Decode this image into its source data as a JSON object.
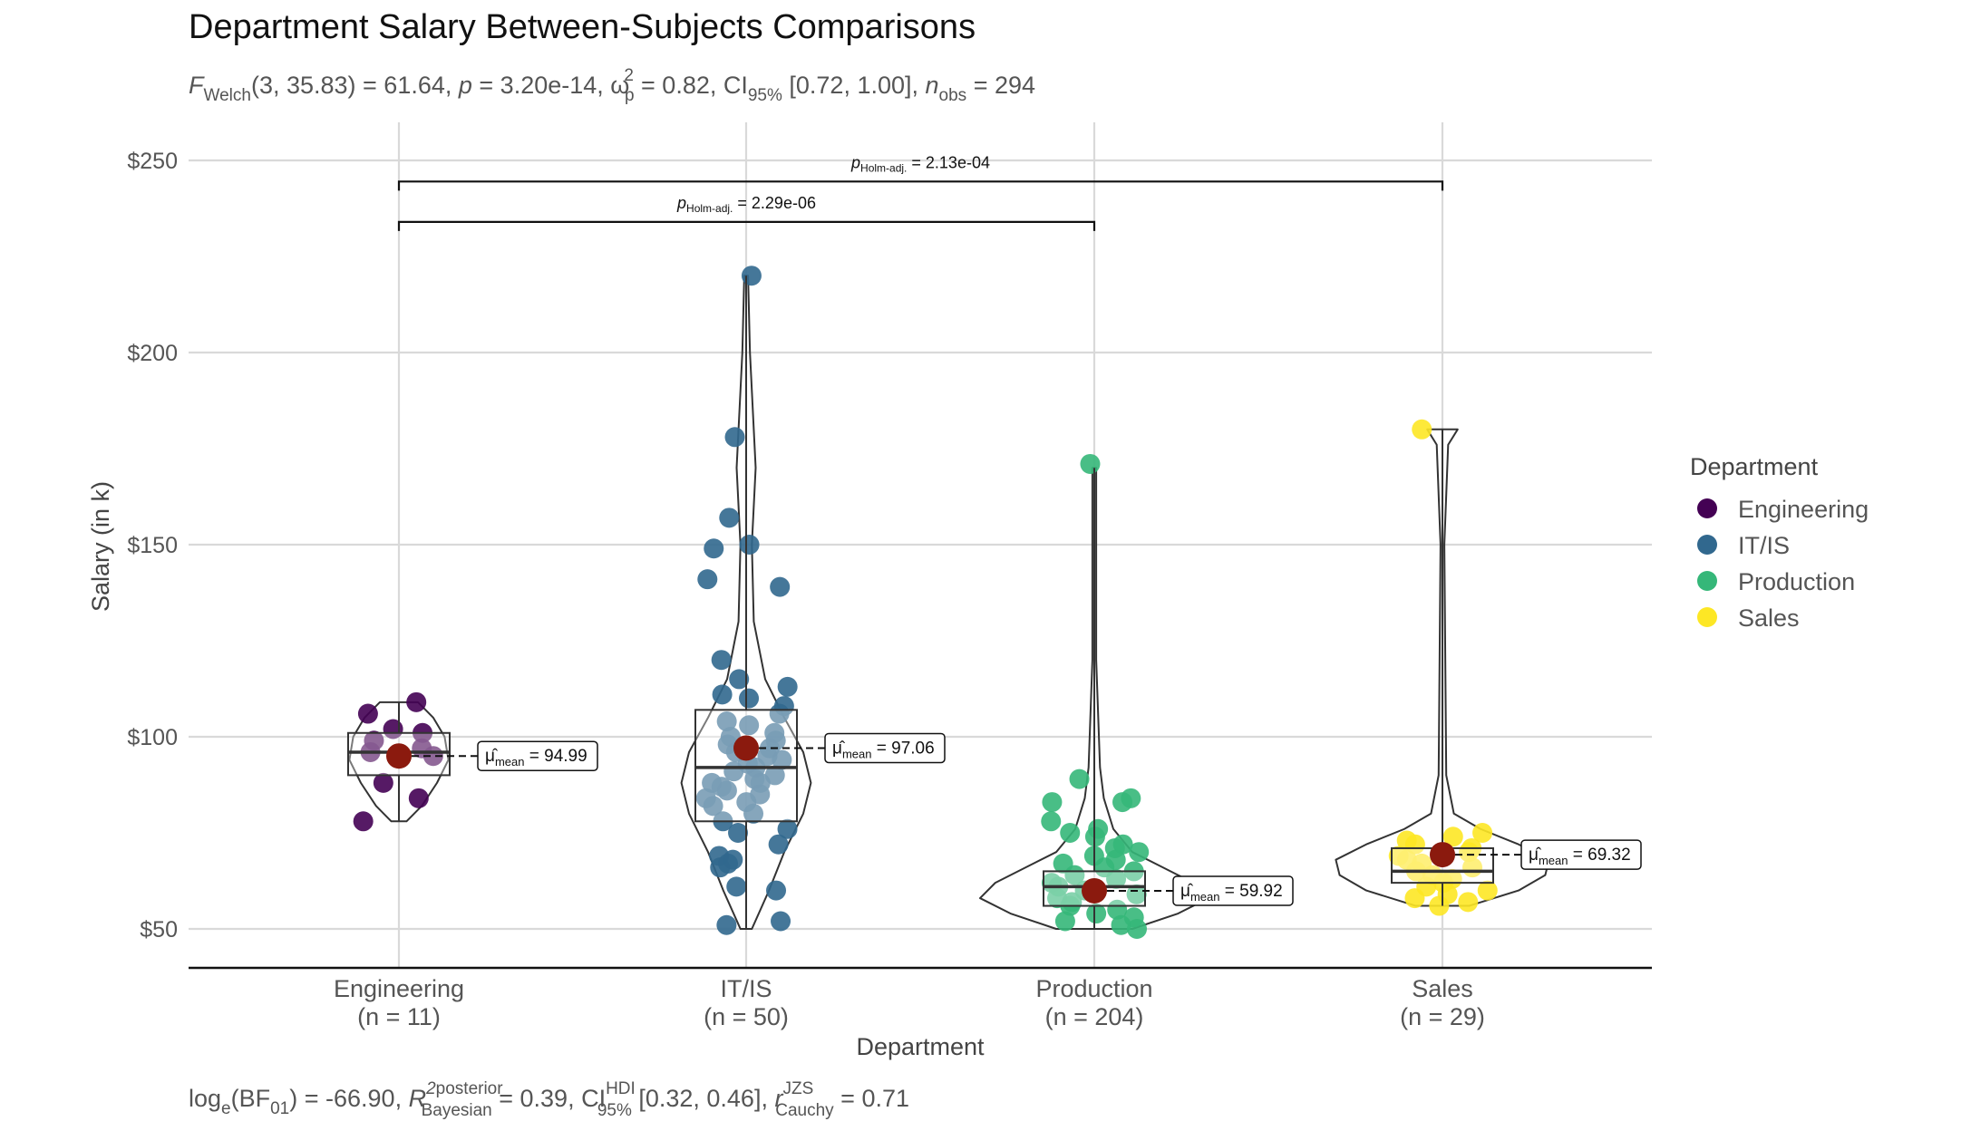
{
  "chart_data": {
    "type": "violin-box-scatter",
    "title": "Department Salary Between-Subjects Comparisons",
    "subtitle": {
      "stat": "F",
      "stat_sub": "Welch",
      "df": "(3, 35.83)",
      "statistic": " = 61.64, ",
      "p_label": "p",
      "p_value": " = 3.20e-14, ",
      "effect": "ω",
      "effect_sup": "2",
      "effect_sub": "p",
      "effect_value": " = 0.82, CI",
      "ci_sub": "95%",
      "ci_value": " [0.72, 1.00], ",
      "n_label": "n",
      "n_sub": "obs",
      "n_value": " = 294"
    },
    "caption": {
      "log": "log",
      "log_sub": "e",
      "bf": "(BF",
      "bf_sub": "01",
      "bf_value": ") = -66.90, ",
      "r2": "R",
      "r2_sup": "2",
      "r2_sup2": "posterior",
      "r2_sub": "Bayesian",
      "r2_value": " = 0.39, CI",
      "hdi_sup": "HDI",
      "hdi_sub": "95%",
      "hdi_value": " [0.32, 0.46], ",
      "r_label": "r",
      "r_sup": "JZS",
      "r_sub": "Cauchy",
      "r_value": " = 0.71"
    },
    "xlabel": "Department",
    "ylabel": "Salary (in k)",
    "ylim": [
      40,
      250
    ],
    "yticks": [
      50,
      100,
      150,
      200,
      250
    ],
    "ytick_labels": [
      "$50",
      "$100",
      "$150",
      "$200",
      "$250"
    ],
    "legend": {
      "title": "Department",
      "position": "right",
      "entries": [
        "Engineering",
        "IT/IS",
        "Production",
        "Sales"
      ]
    },
    "groups": [
      {
        "name": "Engineering",
        "n_label": "(n = 11)",
        "color": "#440154",
        "mean": 94.99,
        "mean_label": " = 94.99",
        "box": {
          "q1": 90,
          "median": 96,
          "q3": 101,
          "whisker_low": 78,
          "whisker_high": 109
        },
        "violin_halfwidth": [
          [
            78,
            4
          ],
          [
            82,
            12
          ],
          [
            88,
            20
          ],
          [
            94,
            26
          ],
          [
            100,
            24
          ],
          [
            105,
            18
          ],
          [
            109,
            10
          ]
        ],
        "points": [
          109,
          106,
          102,
          101,
          99,
          97,
          96,
          95,
          88,
          84,
          78
        ]
      },
      {
        "name": "IT/IS",
        "n_label": "(n = 50)",
        "color": "#31688e",
        "mean": 97.06,
        "mean_label": " = 97.06",
        "box": {
          "q1": 78,
          "median": 92,
          "q3": 107,
          "whisker_low": 50,
          "whisker_high": 220
        },
        "violin_halfwidth": [
          [
            50,
            3
          ],
          [
            60,
            12
          ],
          [
            70,
            20
          ],
          [
            80,
            30
          ],
          [
            88,
            34
          ],
          [
            96,
            30
          ],
          [
            105,
            20
          ],
          [
            115,
            10
          ],
          [
            130,
            4
          ],
          [
            150,
            3
          ],
          [
            170,
            5
          ],
          [
            200,
            2
          ],
          [
            220,
            1
          ]
        ],
        "points": [
          220,
          178,
          157,
          150,
          149,
          141,
          139,
          120,
          115,
          113,
          111,
          110,
          108,
          106,
          104,
          103,
          101,
          100,
          99,
          98,
          97,
          96,
          95,
          94,
          93,
          92,
          91,
          90,
          89,
          88,
          88,
          87,
          86,
          85,
          84,
          83,
          82,
          80,
          78,
          76,
          75,
          72,
          69,
          68,
          67,
          66,
          61,
          60,
          52,
          51
        ]
      },
      {
        "name": "Production",
        "n_label": "(n = 204)",
        "color": "#35b779",
        "mean": 59.92,
        "mean_label": " = 59.92",
        "box": {
          "q1": 56,
          "median": 61,
          "q3": 65,
          "whisker_low": 50,
          "whisker_high": 170
        },
        "violin_halfwidth": [
          [
            50,
            20
          ],
          [
            54,
            44
          ],
          [
            58,
            60
          ],
          [
            62,
            52
          ],
          [
            66,
            36
          ],
          [
            70,
            20
          ],
          [
            76,
            10
          ],
          [
            84,
            5
          ],
          [
            92,
            3
          ],
          [
            120,
            1
          ],
          [
            170,
            1
          ]
        ],
        "points": [
          171,
          89,
          84,
          83,
          83,
          78,
          76,
          75,
          74,
          72,
          71,
          70,
          69,
          68,
          67,
          66,
          65,
          64,
          63,
          62,
          61,
          60,
          59,
          58,
          57,
          56,
          55,
          54,
          53,
          52,
          51,
          50
        ]
      },
      {
        "name": "Sales",
        "n_label": "(n = 29)",
        "color": "#fde725",
        "mean": 69.32,
        "mean_label": " = 69.32",
        "box": {
          "q1": 62,
          "median": 65,
          "q3": 71,
          "whisker_low": 56,
          "whisker_high": 180
        },
        "violin_halfwidth": [
          [
            56,
            14
          ],
          [
            60,
            40
          ],
          [
            64,
            54
          ],
          [
            68,
            56
          ],
          [
            72,
            40
          ],
          [
            76,
            20
          ],
          [
            80,
            6
          ],
          [
            90,
            2
          ],
          [
            150,
            1
          ],
          [
            176,
            3
          ],
          [
            180,
            8
          ]
        ],
        "points": [
          180,
          75,
          74,
          73,
          72,
          71,
          70,
          69,
          68,
          67,
          66,
          65,
          64,
          63,
          62,
          61,
          60,
          59,
          58,
          57,
          56
        ]
      }
    ],
    "pairwise": [
      {
        "from": "Engineering",
        "to": "Production",
        "y": 234,
        "label_p": "p",
        "label_sub": "Holm-adj.",
        "label_value": " = 2.29e-06"
      },
      {
        "from": "Engineering",
        "to": "Sales",
        "y": 244.5,
        "label_p": "p",
        "label_sub": "Holm-adj.",
        "label_value": " = 2.13e-04"
      }
    ],
    "mean_symbol": "μ̂",
    "mean_sub": "mean",
    "grid": true
  }
}
